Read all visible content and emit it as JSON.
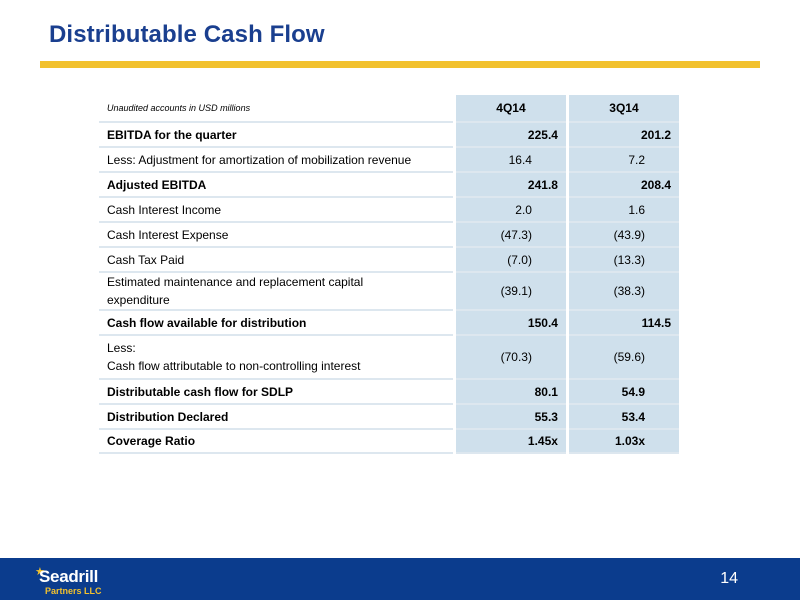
{
  "slide": {
    "title": "Distributable Cash Flow",
    "page_number": "14"
  },
  "table": {
    "header": {
      "label": "Unaudited accounts in USD millions",
      "col1": "4Q14",
      "col2": "3Q14"
    },
    "rows": [
      {
        "label": "EBITDA for the quarter",
        "col1": "225.4",
        "col2": "201.2"
      },
      {
        "label": "Less: Adjustment for amortization of mobilization revenue",
        "col1": "16.4",
        "col2": "7.2"
      },
      {
        "label": "Adjusted EBITDA",
        "col1": "241.8",
        "col2": "208.4"
      },
      {
        "label": "Cash Interest Income",
        "col1": "2.0",
        "col2": "1.6"
      },
      {
        "label": "Cash Interest Expense",
        "col1": "(47.3)",
        "col2": "(43.9)"
      },
      {
        "label": "Cash Tax Paid",
        "col1": "(7.0)",
        "col2": "(13.3)"
      },
      {
        "label_line1": "Estimated maintenance and replacement capital",
        "label_line2": "expenditure",
        "col1": "(39.1)",
        "col2": "(38.3)"
      },
      {
        "label": "Cash flow available for distribution",
        "col1": "150.4",
        "col2": "114.5"
      },
      {
        "label_line1": "Less:",
        "label_line2": "Cash flow attributable to non-controlling interest",
        "col1": "(70.3)",
        "col2": "(59.6)"
      },
      {
        "label": "Distributable cash flow for SDLP",
        "col1": "80.1",
        "col2": "54.9"
      },
      {
        "label": "Distribution Declared",
        "col1": "55.3",
        "col2": "53.4"
      },
      {
        "label": "Coverage Ratio",
        "col1": "1.45x",
        "col2": "1.03x"
      }
    ]
  },
  "logo": {
    "name": "Seadrill",
    "subtitle": "Partners LLC"
  }
}
